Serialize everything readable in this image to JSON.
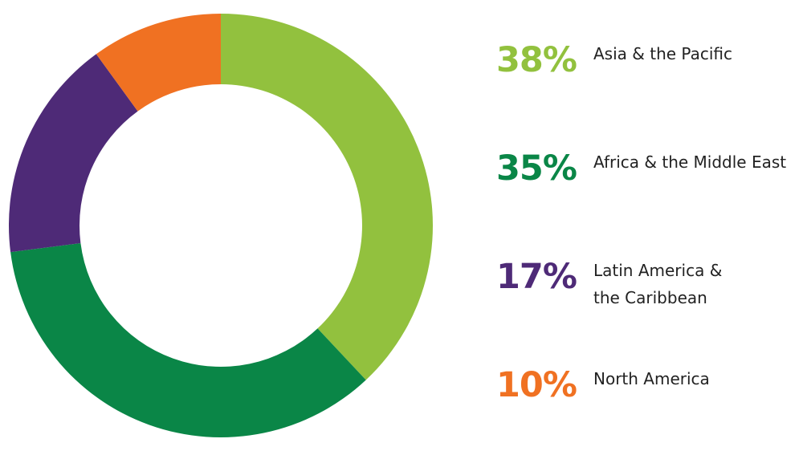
{
  "chart_data": {
    "type": "pie",
    "style": "donut",
    "title": "",
    "legend_position": "right",
    "slices": [
      {
        "label": "Asia & the Pacific",
        "value": 38,
        "value_label": "38%",
        "color": "#92C13E"
      },
      {
        "label": "Africa & the Middle East",
        "value": 35,
        "value_label": "35%",
        "color": "#0A8647"
      },
      {
        "label": "Latin America &\nthe Caribbean",
        "value": 17,
        "value_label": "17%",
        "color": "#4E2A77"
      },
      {
        "label": "North America",
        "value": 10,
        "value_label": "10%",
        "color": "#F07122"
      }
    ]
  }
}
